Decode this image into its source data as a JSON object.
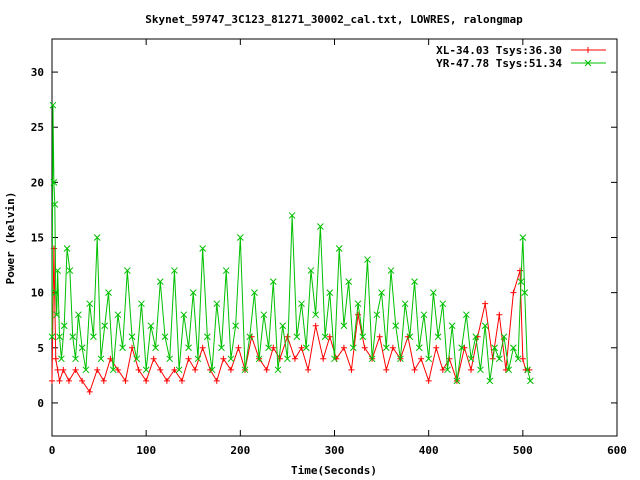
{
  "chart_data": {
    "type": "line",
    "title": "Skynet_59747_3C123_81271_30002_cal.txt, LOWRES, ralongmap",
    "xlabel": "Time(Seconds)",
    "ylabel": "Power (kelvin)",
    "xlim": [
      0,
      600
    ],
    "ylim": [
      -3,
      33
    ],
    "x_ticks": [
      0,
      100,
      200,
      300,
      400,
      500,
      600
    ],
    "y_ticks": [
      0,
      5,
      10,
      15,
      20,
      25,
      30
    ],
    "x_tick_labels": [
      "0",
      "100",
      "200",
      "300",
      "400",
      "500",
      "600"
    ],
    "y_tick_labels": [
      "0",
      "5",
      "10",
      "15",
      "20",
      "25",
      "30"
    ],
    "grid": false,
    "legend_position": "top-right",
    "series": [
      {
        "name": "XL-34.03 Tsys:36.30",
        "color": "#ff0000",
        "marker": "plus",
        "x": [
          0,
          2,
          4,
          6,
          8,
          12,
          18,
          25,
          32,
          40,
          48,
          55,
          62,
          70,
          78,
          85,
          92,
          100,
          108,
          115,
          122,
          130,
          138,
          145,
          152,
          160,
          168,
          175,
          182,
          190,
          198,
          205,
          212,
          220,
          228,
          235,
          242,
          250,
          258,
          265,
          272,
          280,
          288,
          295,
          302,
          310,
          318,
          325,
          332,
          340,
          348,
          355,
          362,
          370,
          378,
          385,
          392,
          400,
          408,
          415,
          422,
          430,
          438,
          445,
          452,
          460,
          468,
          475,
          482,
          490,
          497,
          500,
          503,
          507
        ],
        "y": [
          2,
          14,
          4,
          3,
          2,
          3,
          2,
          3,
          2,
          1,
          3,
          2,
          4,
          3,
          2,
          5,
          3,
          2,
          4,
          3,
          2,
          3,
          2,
          4,
          3,
          5,
          3,
          2,
          4,
          3,
          5,
          3,
          6,
          4,
          3,
          5,
          4,
          6,
          4,
          5,
          3,
          7,
          4,
          6,
          4,
          5,
          3,
          8,
          5,
          4,
          6,
          3,
          5,
          4,
          6,
          3,
          4,
          2,
          5,
          3,
          4,
          2,
          5,
          3,
          6,
          9,
          4,
          8,
          3,
          10,
          12,
          4,
          3,
          3
        ]
      },
      {
        "name": "YR-47.78 Tsys:51.34",
        "color": "#00c000",
        "marker": "x",
        "x": [
          0,
          1,
          2,
          3,
          4,
          5,
          6,
          8,
          10,
          13,
          16,
          19,
          22,
          25,
          28,
          32,
          36,
          40,
          44,
          48,
          52,
          56,
          60,
          65,
          70,
          75,
          80,
          85,
          90,
          95,
          100,
          105,
          110,
          115,
          120,
          125,
          130,
          135,
          140,
          145,
          150,
          155,
          160,
          165,
          170,
          175,
          180,
          185,
          190,
          195,
          200,
          205,
          210,
          215,
          220,
          225,
          230,
          235,
          240,
          245,
          250,
          255,
          260,
          265,
          270,
          275,
          280,
          285,
          290,
          295,
          300,
          305,
          310,
          315,
          320,
          325,
          330,
          335,
          340,
          345,
          350,
          355,
          360,
          365,
          370,
          375,
          380,
          385,
          390,
          395,
          400,
          405,
          410,
          415,
          420,
          425,
          430,
          435,
          440,
          445,
          450,
          455,
          460,
          465,
          470,
          475,
          480,
          485,
          490,
          495,
          498,
          500,
          502,
          505,
          508
        ],
        "y": [
          6,
          27,
          20,
          18,
          10,
          8,
          12,
          6,
          4,
          7,
          14,
          12,
          6,
          4,
          8,
          5,
          3,
          9,
          6,
          15,
          4,
          7,
          10,
          3,
          8,
          5,
          12,
          6,
          4,
          9,
          3,
          7,
          5,
          11,
          6,
          4,
          12,
          3,
          8,
          5,
          10,
          4,
          14,
          6,
          3,
          9,
          5,
          12,
          4,
          7,
          15,
          3,
          6,
          10,
          4,
          8,
          5,
          11,
          3,
          7,
          4,
          17,
          6,
          9,
          5,
          12,
          8,
          16,
          6,
          10,
          4,
          14,
          7,
          11,
          5,
          9,
          6,
          13,
          4,
          8,
          10,
          5,
          12,
          7,
          4,
          9,
          6,
          11,
          5,
          8,
          4,
          10,
          6,
          9,
          3,
          7,
          2,
          5,
          8,
          4,
          6,
          3,
          7,
          2,
          5,
          4,
          6,
          3,
          5,
          4,
          11,
          15,
          10,
          3,
          2
        ]
      }
    ]
  }
}
